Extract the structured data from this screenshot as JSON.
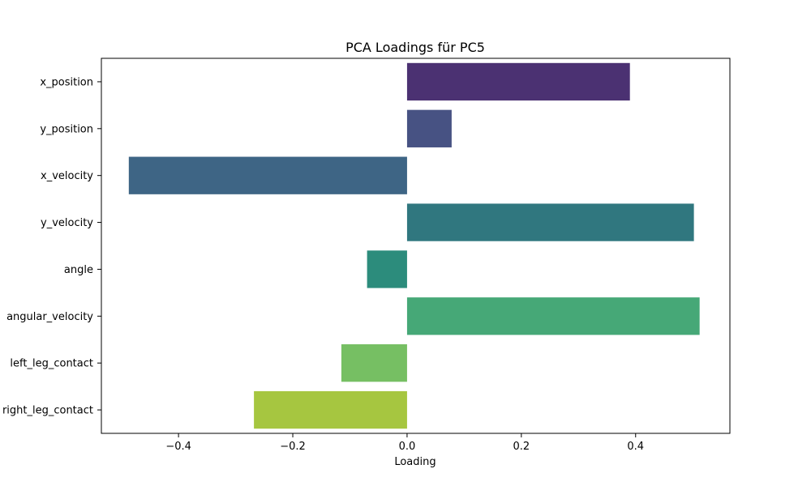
{
  "chart_data": {
    "type": "bar",
    "orientation": "horizontal",
    "title": "PCA Loadings für PC5",
    "xlabel": "Loading",
    "ylabel": "",
    "xlim": [
      -0.535,
      0.565
    ],
    "xticks": [
      -0.4,
      -0.2,
      0.0,
      0.2,
      0.4
    ],
    "xtick_labels": [
      "−0.4",
      "−0.2",
      "0.0",
      "0.2",
      "0.4"
    ],
    "grid": false,
    "legend": "none",
    "categories": [
      "x_position",
      "y_position",
      "x_velocity",
      "y_velocity",
      "angle",
      "angular_velocity",
      "left_leg_contact",
      "right_leg_contact"
    ],
    "values": [
      0.39,
      0.078,
      -0.487,
      0.502,
      -0.07,
      0.512,
      -0.115,
      -0.268
    ],
    "colors": [
      "#4b3172",
      "#475283",
      "#3e6585",
      "#30777f",
      "#2c8c7c",
      "#46a877",
      "#76bf63",
      "#a6c640"
    ]
  }
}
